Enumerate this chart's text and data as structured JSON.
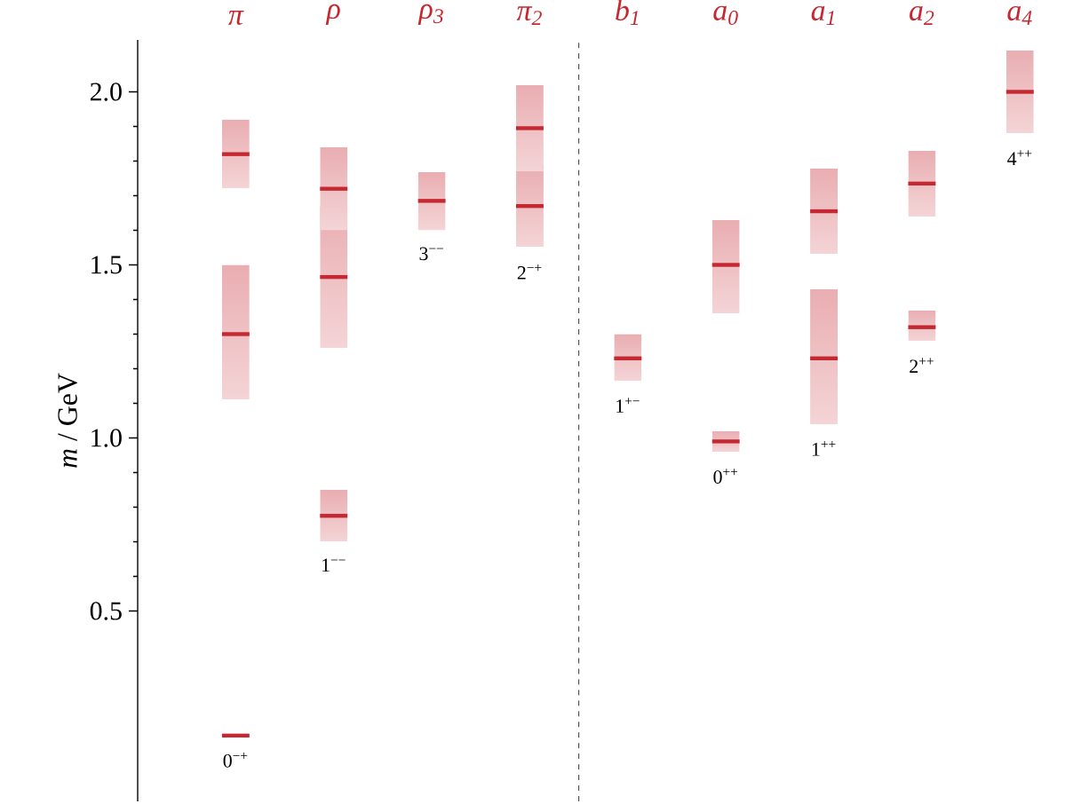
{
  "chart_data": {
    "type": "box",
    "ylabel": "*m* / GeV",
    "categories": [
      "π",
      "ρ",
      "ρ$_{3}$",
      "π$_{2}$",
      "b$_{1}$",
      "a$_{0}$",
      "a$_{1}$",
      "a$_{2}$",
      "a$_{4}$"
    ],
    "series": [
      {
        "color": "#c62832",
        "boxes": [
          {
            "low": 0.14,
            "q1": 0.14,
            "median": 0.14,
            "q3": 0.14,
            "high": 0.14
          },
          {
            "low": 0.7,
            "q1": 0.7,
            "median": 0.775,
            "q3": 0.85,
            "high": 0.85
          },
          {
            "low": 1.6,
            "q1": 1.6,
            "median": 1.685,
            "q3": 1.77,
            "high": 1.77
          },
          {
            "low": 1.55,
            "q1": 1.55,
            "median": 1.67,
            "q3": 1.79,
            "high": 1.79
          },
          {
            "low": 1.165,
            "q1": 1.165,
            "median": 1.23,
            "q3": 1.3,
            "high": 1.3
          },
          {
            "low": 0.96,
            "q1": 0.96,
            "median": 0.99,
            "q3": 1.02,
            "high": 1.02
          },
          {
            "low": 1.04,
            "q1": 1.04,
            "median": 1.23,
            "q3": 1.43,
            "high": 1.43
          },
          {
            "low": 1.28,
            "q1": 1.28,
            "median": 1.32,
            "q3": 1.37,
            "high": 1.37
          },
          {
            "low": 1.88,
            "q1": 1.88,
            "median": 2.0,
            "q3": 2.12,
            "high": 2.12
          }
        ]
      },
      {
        "color": "#c62832",
        "boxes": [
          {
            "low": 1.11,
            "q1": 1.11,
            "median": 1.3,
            "q3": 1.5,
            "high": 1.5
          },
          {
            "low": 1.26,
            "q1": 1.26,
            "median": 1.465,
            "q3": 1.67,
            "high": 1.67
          },
          null,
          {
            "low": 1.77,
            "q1": 1.77,
            "median": 1.895,
            "q3": 2.02,
            "high": 2.02
          },
          null,
          {
            "low": 1.36,
            "q1": 1.36,
            "median": 1.5,
            "q3": 1.63,
            "high": 1.63
          },
          {
            "low": 1.53,
            "q1": 1.53,
            "median": 1.655,
            "q3": 1.78,
            "high": 1.78
          },
          {
            "low": 1.64,
            "q1": 1.64,
            "median": 1.735,
            "q3": 1.83,
            "high": 1.83
          },
          null
        ]
      },
      {
        "color": "#c62832",
        "boxes": [
          {
            "low": 1.72,
            "q1": 1.72,
            "median": 1.82,
            "q3": 1.92,
            "high": 1.92
          },
          {
            "low": 1.6,
            "q1": 1.6,
            "median": 1.72,
            "q3": 1.84,
            "high": 1.84
          },
          null,
          null,
          null,
          null,
          null,
          null,
          null
        ]
      }
    ],
    "ylim": [
      -0.05,
      2.15
    ],
    "yticks": [
      {
        "value": 0.5,
        "label": "0.5"
      },
      {
        "value": 1.0,
        "label": "1.0"
      },
      {
        "value": 1.5,
        "label": "1.5"
      },
      {
        "value": 2.0,
        "label": "2.0"
      }
    ],
    "annotations": [
      "0$^{−+}$",
      "1$^{−−}$",
      "3$^{−−}$",
      "2$^{−+}$",
      "1$^{+−}$",
      "0$^{++}$",
      "1$^{++}$",
      "2$^{++}$",
      "4$^{++}$"
    ]
  }
}
